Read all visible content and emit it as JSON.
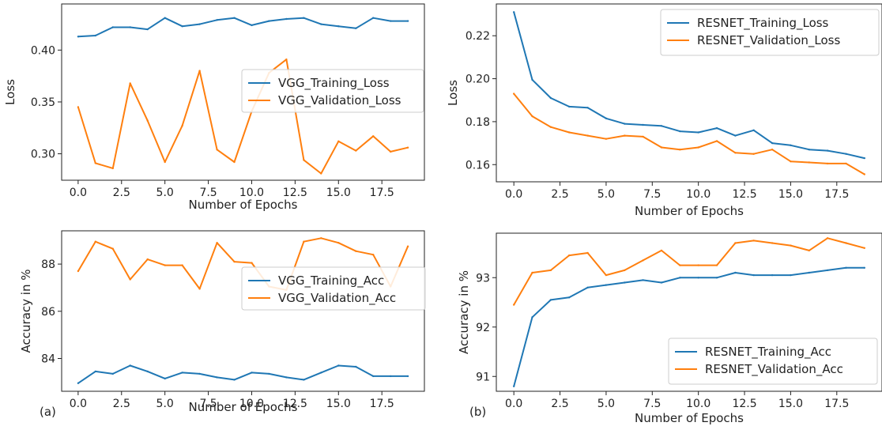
{
  "figure": {
    "panel_labels": [
      "(a)",
      "(b)"
    ]
  },
  "chart_data": [
    {
      "type": "line",
      "panel": "(a)",
      "xlabel": "Number of Epochs",
      "ylabel": "Loss",
      "x": [
        0,
        1,
        2,
        3,
        4,
        5,
        6,
        7,
        8,
        9,
        10,
        11,
        12,
        13,
        14,
        15,
        16,
        17,
        18,
        19
      ],
      "xlim": [
        -0.95,
        19.95
      ],
      "ylim": [
        0.2745,
        0.4445
      ],
      "xticks": [
        0.0,
        2.5,
        5.0,
        7.5,
        10.0,
        12.5,
        15.0,
        17.5
      ],
      "xtick_labels": [
        "0.0",
        "2.5",
        "5.0",
        "7.5",
        "10.0",
        "12.5",
        "15.0",
        "17.5"
      ],
      "yticks": [
        0.3,
        0.35,
        0.4
      ],
      "ytick_labels": [
        "0.30",
        "0.35",
        "0.40"
      ],
      "legend_position": "center-right",
      "series": [
        {
          "name": "VGG_Training_Loss",
          "color": "#1f77b4",
          "values": [
            0.413,
            0.414,
            0.422,
            0.422,
            0.42,
            0.431,
            0.423,
            0.425,
            0.429,
            0.431,
            0.424,
            0.428,
            0.43,
            0.431,
            0.425,
            0.423,
            0.421,
            0.431,
            0.428,
            0.428
          ]
        },
        {
          "name": "VGG_Validation_Loss",
          "color": "#ff7f0e",
          "values": [
            0.345,
            0.291,
            0.286,
            0.368,
            0.332,
            0.292,
            0.327,
            0.38,
            0.304,
            0.292,
            0.341,
            0.378,
            0.391,
            0.294,
            0.281,
            0.312,
            0.303,
            0.317,
            0.302,
            0.306
          ]
        }
      ]
    },
    {
      "type": "line",
      "panel": "(a)",
      "xlabel": "Number of Epochs",
      "ylabel": "Accuracy in %",
      "x": [
        0,
        1,
        2,
        3,
        4,
        5,
        6,
        7,
        8,
        9,
        10,
        11,
        12,
        13,
        14,
        15,
        16,
        17,
        18,
        19
      ],
      "xlim": [
        -0.95,
        19.95
      ],
      "ylim": [
        82.61,
        89.41
      ],
      "xticks": [
        0.0,
        2.5,
        5.0,
        7.5,
        10.0,
        12.5,
        15.0,
        17.5
      ],
      "xtick_labels": [
        "0.0",
        "2.5",
        "5.0",
        "7.5",
        "10.0",
        "12.5",
        "15.0",
        "17.5"
      ],
      "yticks": [
        84,
        86,
        88
      ],
      "ytick_labels": [
        "84",
        "86",
        "88"
      ],
      "legend_position": "center-right",
      "series": [
        {
          "name": "VGG_Training_Acc",
          "color": "#1f77b4",
          "values": [
            82.95,
            83.45,
            83.35,
            83.7,
            83.45,
            83.15,
            83.4,
            83.35,
            83.2,
            83.1,
            83.4,
            83.35,
            83.2,
            83.1,
            83.4,
            83.7,
            83.65,
            83.25,
            83.25,
            83.25
          ]
        },
        {
          "name": "VGG_Validation_Acc",
          "color": "#ff7f0e",
          "values": [
            87.7,
            88.95,
            88.65,
            87.35,
            88.2,
            87.95,
            87.95,
            86.95,
            88.9,
            88.1,
            88.05,
            87.05,
            86.9,
            88.95,
            89.1,
            88.9,
            88.55,
            88.4,
            87.05,
            88.75
          ]
        }
      ]
    },
    {
      "type": "line",
      "panel": "(b)",
      "xlabel": "Number of Epochs",
      "ylabel": "Loss",
      "x": [
        0,
        1,
        2,
        3,
        4,
        5,
        6,
        7,
        8,
        9,
        10,
        11,
        12,
        13,
        14,
        15,
        16,
        17,
        18,
        19
      ],
      "xlim": [
        -0.95,
        19.95
      ],
      "ylim": [
        0.152,
        0.2348
      ],
      "xticks": [
        0.0,
        2.5,
        5.0,
        7.5,
        10.0,
        12.5,
        15.0,
        17.5
      ],
      "xtick_labels": [
        "0.0",
        "2.5",
        "5.0",
        "7.5",
        "10.0",
        "12.5",
        "15.0",
        "17.5"
      ],
      "yticks": [
        0.16,
        0.18,
        0.2,
        0.22
      ],
      "ytick_labels": [
        "0.16",
        "0.18",
        "0.20",
        "0.22"
      ],
      "legend_position": "upper-right",
      "series": [
        {
          "name": "RESNET_Training_Loss",
          "color": "#1f77b4",
          "values": [
            0.231,
            0.1995,
            0.191,
            0.187,
            0.1865,
            0.1815,
            0.179,
            0.1785,
            0.178,
            0.1755,
            0.175,
            0.177,
            0.1735,
            0.176,
            0.17,
            0.169,
            0.167,
            0.1665,
            0.165,
            0.163
          ]
        },
        {
          "name": "RESNET_Validation_Loss",
          "color": "#ff7f0e",
          "values": [
            0.193,
            0.1825,
            0.1775,
            0.175,
            0.1735,
            0.172,
            0.1735,
            0.173,
            0.168,
            0.167,
            0.168,
            0.171,
            0.1655,
            0.165,
            0.167,
            0.1615,
            0.161,
            0.1605,
            0.1605,
            0.1555
          ]
        }
      ]
    },
    {
      "type": "line",
      "panel": "(b)",
      "xlabel": "Number of Epochs",
      "ylabel": "Accuracy in %",
      "x": [
        0,
        1,
        2,
        3,
        4,
        5,
        6,
        7,
        8,
        9,
        10,
        11,
        12,
        13,
        14,
        15,
        16,
        17,
        18,
        19
      ],
      "xlim": [
        -0.95,
        19.95
      ],
      "ylim": [
        90.7,
        93.9
      ],
      "xticks": [
        0.0,
        2.5,
        5.0,
        7.5,
        10.0,
        12.5,
        15.0,
        17.5
      ],
      "xtick_labels": [
        "0.0",
        "2.5",
        "5.0",
        "7.5",
        "10.0",
        "12.5",
        "15.0",
        "17.5"
      ],
      "yticks": [
        91,
        92,
        93
      ],
      "ytick_labels": [
        "91",
        "92",
        "93"
      ],
      "legend_position": "lower-right",
      "series": [
        {
          "name": "RESNET_Training_Acc",
          "color": "#1f77b4",
          "values": [
            90.8,
            92.2,
            92.55,
            92.6,
            92.8,
            92.85,
            92.9,
            92.95,
            92.9,
            93.0,
            93.0,
            93.0,
            93.1,
            93.05,
            93.05,
            93.05,
            93.1,
            93.15,
            93.2,
            93.2
          ]
        },
        {
          "name": "RESNET_Validation_Acc",
          "color": "#ff7f0e",
          "values": [
            92.45,
            93.1,
            93.15,
            93.45,
            93.5,
            93.05,
            93.15,
            93.35,
            93.55,
            93.25,
            93.25,
            93.25,
            93.7,
            93.75,
            93.7,
            93.65,
            93.55,
            93.8,
            93.7,
            93.6
          ]
        }
      ]
    }
  ]
}
